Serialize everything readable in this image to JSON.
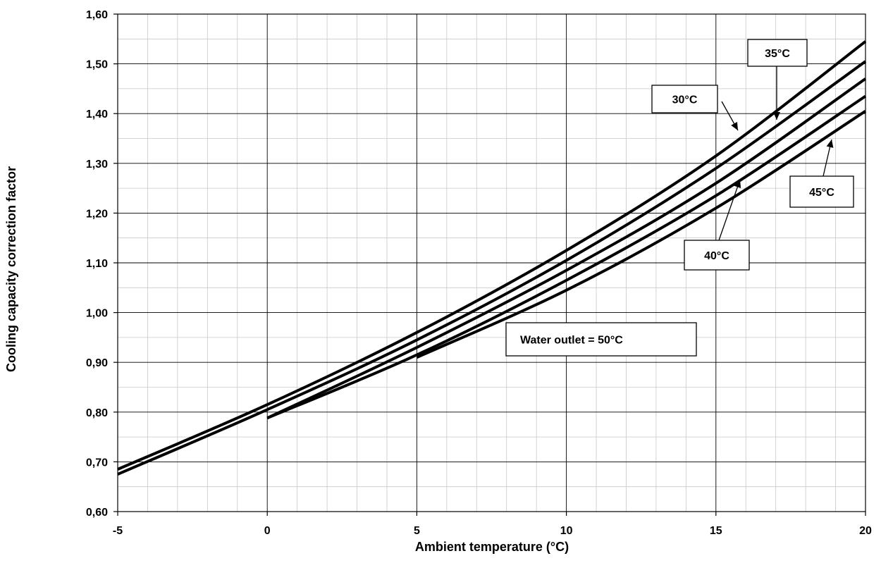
{
  "chart_data": {
    "type": "line",
    "title": "",
    "xlabel": "Ambient temperature (°C)",
    "ylabel": "Cooling capacity correction factor",
    "xlim": [
      -5,
      20
    ],
    "ylim": [
      0.6,
      1.6
    ],
    "x_ticks": [
      -5,
      0,
      5,
      10,
      15,
      20
    ],
    "x_tick_labels": [
      "-5",
      "0",
      "5",
      "10",
      "15",
      "20"
    ],
    "y_ticks": [
      0.6,
      0.7,
      0.8,
      0.9,
      1.0,
      1.1,
      1.2,
      1.3,
      1.4,
      1.5,
      1.6
    ],
    "y_tick_labels": [
      "0,60",
      "0,70",
      "0,80",
      "0,90",
      "1,00",
      "1,10",
      "1,20",
      "1,30",
      "1,40",
      "1,50",
      "1,60"
    ],
    "grid": true,
    "legend": "none",
    "series": [
      {
        "name": "30°C",
        "x": [
          -5,
          0,
          5,
          10,
          15,
          20
        ],
        "y": [
          0.685,
          0.815,
          0.96,
          1.125,
          1.315,
          1.545
        ]
      },
      {
        "name": "35°C",
        "x": [
          -5,
          0,
          5,
          10,
          15,
          20
        ],
        "y": [
          0.675,
          0.805,
          0.945,
          1.105,
          1.29,
          1.505
        ]
      },
      {
        "name": "40°C",
        "x": [
          0,
          5,
          10,
          15,
          20
        ],
        "y": [
          0.788,
          0.93,
          1.085,
          1.26,
          1.47
        ]
      },
      {
        "name": "45°C",
        "x": [
          0,
          5,
          10,
          15,
          20
        ],
        "y": [
          0.788,
          0.915,
          1.065,
          1.235,
          1.435
        ]
      },
      {
        "name": "Water outlet = 50°C",
        "x": [
          5,
          10,
          15,
          20
        ],
        "y": [
          0.91,
          1.045,
          1.21,
          1.405
        ]
      }
    ],
    "annotations": [
      {
        "text": "35°C",
        "series": "35°C"
      },
      {
        "text": "30°C",
        "series": "30°C"
      },
      {
        "text": "45°C",
        "series": "Water outlet = 50°C"
      },
      {
        "text": "40°C",
        "series": "45°C"
      },
      {
        "text": "Water outlet = 50°C",
        "series": "Water outlet = 50°C"
      }
    ]
  }
}
